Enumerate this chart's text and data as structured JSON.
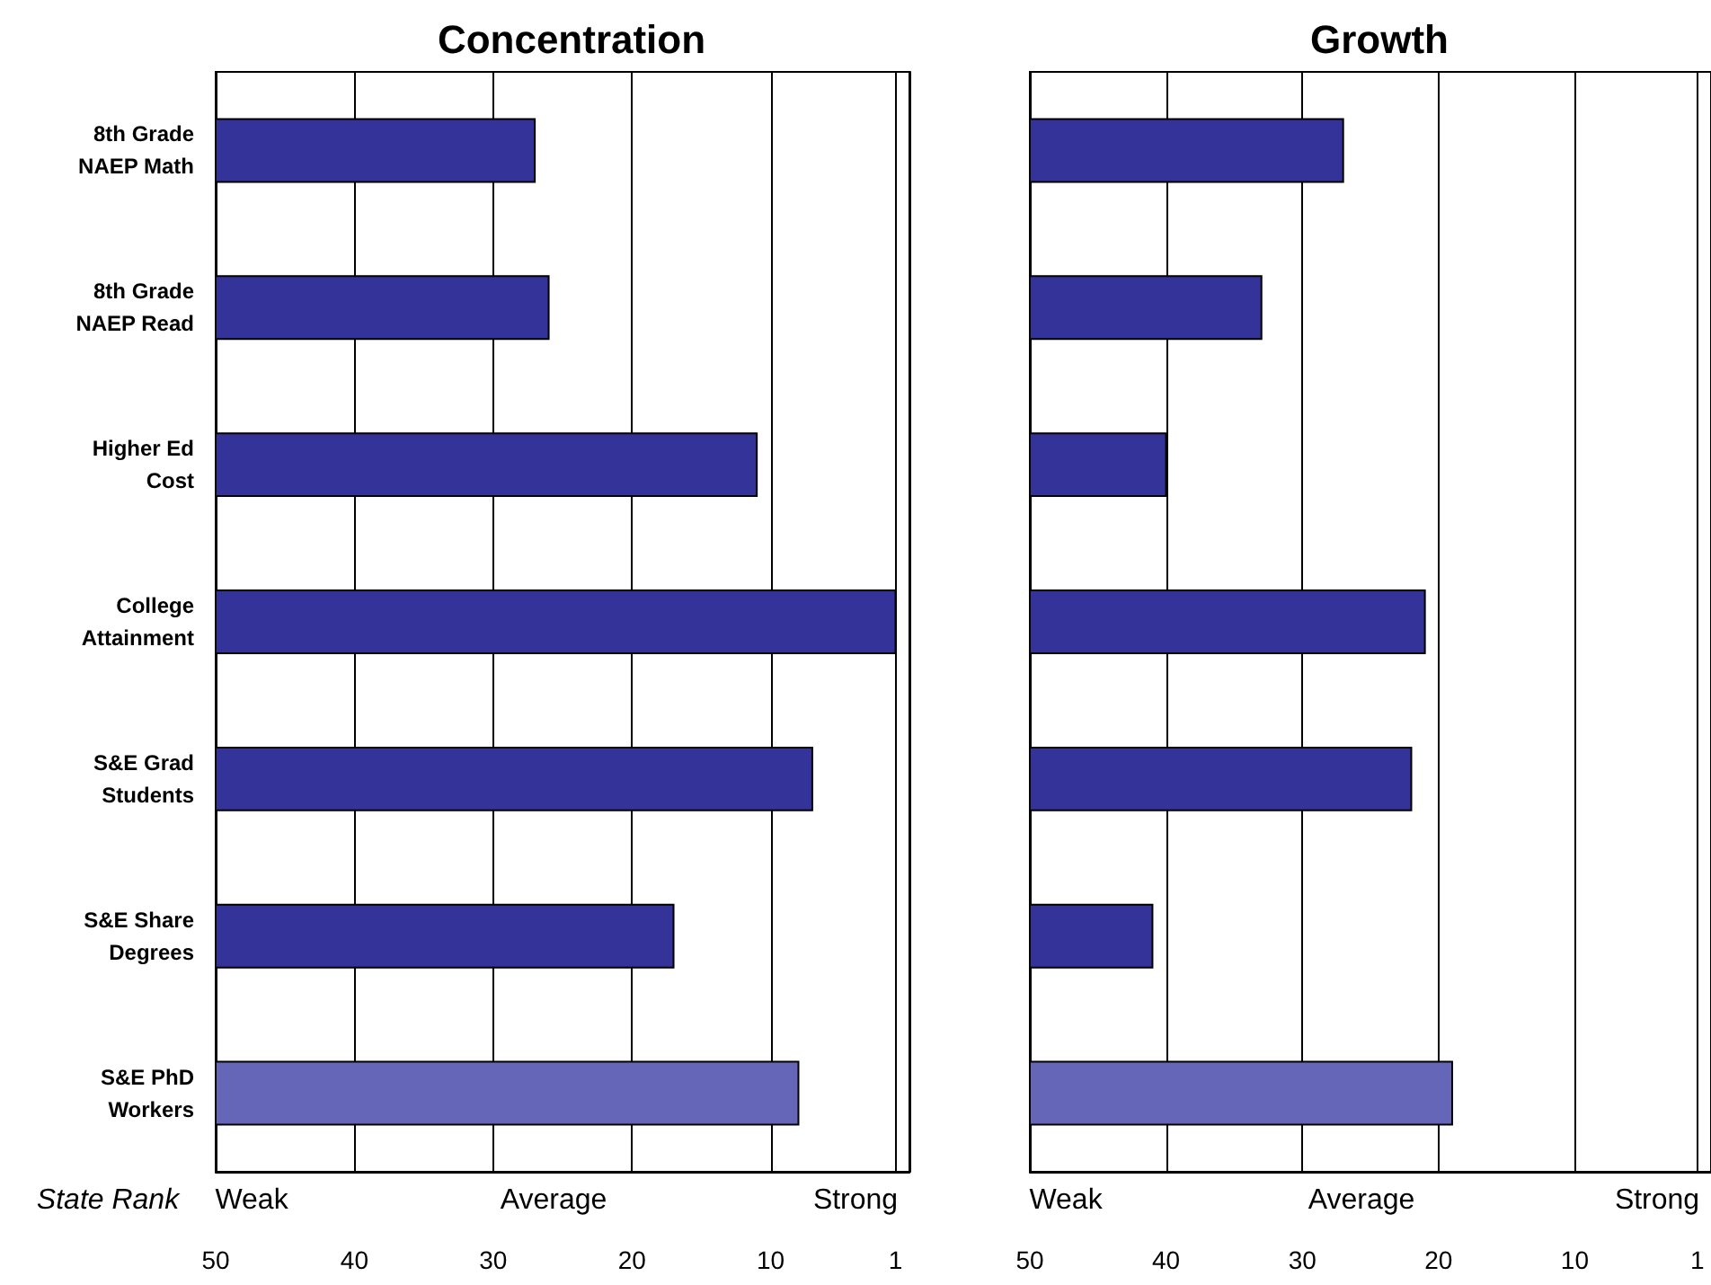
{
  "chart_data": [
    {
      "type": "bar",
      "orientation": "horizontal",
      "title": "Concentration",
      "xlabel": "State Rank",
      "categories": [
        "8th Grade\nNAEP Math",
        "8th Grade\nNAEP Read",
        "Higher Ed\nCost",
        "College\nAttainment",
        "S&E Grad\nStudents",
        "S&E Share\nDegrees",
        "S&E PhD\nWorkers"
      ],
      "base": [
        50,
        50,
        50,
        50,
        50,
        50,
        50
      ],
      "values": [
        -23,
        -24,
        -39,
        -49,
        -43,
        -33,
        -42
      ],
      "colors": [
        "#333399",
        "#333399",
        "#333399",
        "#333399",
        "#333399",
        "#333399",
        "#6666b8"
      ],
      "xlim": [
        50,
        0
      ],
      "xticks": [
        50,
        40,
        30,
        20,
        10,
        1
      ],
      "grid": "x",
      "annotations": [
        "Weak",
        "Average",
        "Strong"
      ]
    },
    {
      "type": "bar",
      "orientation": "horizontal",
      "title": "Growth",
      "categories": [
        null,
        null,
        null,
        null,
        null,
        null,
        null
      ],
      "base": [
        50,
        50,
        50,
        50,
        50,
        50,
        50
      ],
      "values": [
        -23,
        -17,
        -10,
        -29,
        -28,
        -9,
        -31
      ],
      "colors": [
        "#333399",
        "#333399",
        "#333399",
        "#333399",
        "#333399",
        "#333399",
        "#6666b8"
      ],
      "xlim": [
        50,
        0
      ],
      "xticks": [
        50,
        40,
        30,
        20,
        10,
        1
      ],
      "grid": "x",
      "tick_labels": "x",
      "annotations": [
        "Weak",
        "Average",
        "Strong"
      ]
    }
  ]
}
